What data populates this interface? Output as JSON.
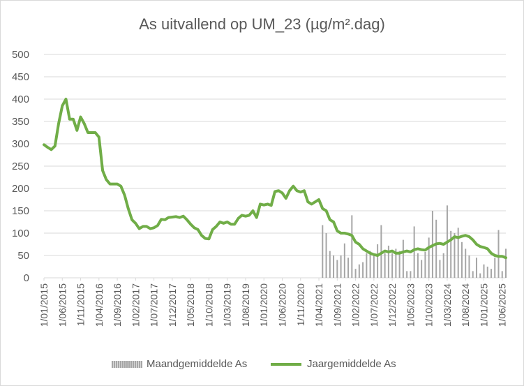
{
  "colors": {
    "line": "#70ad47",
    "bar": "#a6a6a6",
    "grid": "#d9d9d9",
    "text": "#595959"
  },
  "chart_data": {
    "type": "bar+line",
    "title": "As uitvallend op UM_23 (µg/m².dag)",
    "xlabel": "",
    "ylabel": "",
    "ylim": [
      0,
      500
    ],
    "yticks": [
      0,
      50,
      100,
      150,
      200,
      250,
      300,
      350,
      400,
      450,
      500
    ],
    "grid": true,
    "legend": "bottom",
    "xticks": [
      "1/01/2015",
      "1/06/2015",
      "1/11/2015",
      "1/04/2016",
      "1/09/2016",
      "1/02/2017",
      "1/07/2017",
      "1/12/2017",
      "1/05/2018",
      "1/10/2018",
      "1/03/2019",
      "1/08/2019",
      "1/01/2020",
      "1/06/2020",
      "1/11/2020",
      "1/04/2021",
      "1/09/2021",
      "1/02/2022",
      "1/07/2022",
      "1/12/2022",
      "1/05/2023",
      "1/10/2023",
      "1/03/2024",
      "1/08/2024",
      "1/01/2025",
      "1/06/2025"
    ],
    "series": [
      {
        "name": "Maandgemiddelde As",
        "type": "bar",
        "x": [
          "2021-05",
          "2021-06",
          "2021-07",
          "2021-08",
          "2021-09",
          "2021-10",
          "2021-11",
          "2021-12",
          "2022-01",
          "2022-02",
          "2022-03",
          "2022-04",
          "2022-05",
          "2022-06",
          "2022-07",
          "2022-08",
          "2022-09",
          "2022-10",
          "2022-11",
          "2022-12",
          "2023-01",
          "2023-02",
          "2023-03",
          "2023-04",
          "2023-05",
          "2023-06",
          "2023-07",
          "2023-08",
          "2023-09",
          "2023-10",
          "2023-11",
          "2023-12",
          "2024-01",
          "2024-02",
          "2024-03",
          "2024-04",
          "2024-05",
          "2024-06",
          "2024-07",
          "2024-08",
          "2024-09",
          "2024-10",
          "2024-11",
          "2024-12",
          "2025-01",
          "2025-02",
          "2025-03",
          "2025-04",
          "2025-05",
          "2025-06",
          "2025-07"
        ],
        "values": [
          118,
          100,
          60,
          50,
          40,
          50,
          77,
          45,
          140,
          20,
          30,
          35,
          55,
          60,
          50,
          75,
          118,
          55,
          72,
          55,
          65,
          60,
          85,
          15,
          15,
          115,
          55,
          40,
          58,
          90,
          150,
          130,
          40,
          55,
          162,
          105,
          100,
          112,
          80,
          65,
          50,
          15,
          45,
          10,
          30,
          25,
          20,
          45,
          107,
          15,
          65
        ]
      },
      {
        "name": "Jaargemiddelde As",
        "type": "line",
        "x": [
          "2015-01",
          "2015-02",
          "2015-03",
          "2015-04",
          "2015-05",
          "2015-06",
          "2015-07",
          "2015-08",
          "2015-09",
          "2015-10",
          "2015-11",
          "2015-12",
          "2016-01",
          "2016-02",
          "2016-03",
          "2016-04",
          "2016-05",
          "2016-06",
          "2016-07",
          "2016-08",
          "2016-09",
          "2016-10",
          "2016-11",
          "2016-12",
          "2017-01",
          "2017-02",
          "2017-03",
          "2017-04",
          "2017-05",
          "2017-06",
          "2017-07",
          "2017-08",
          "2017-09",
          "2017-10",
          "2017-11",
          "2017-12",
          "2018-01",
          "2018-02",
          "2018-03",
          "2018-04",
          "2018-05",
          "2018-06",
          "2018-07",
          "2018-08",
          "2018-09",
          "2018-10",
          "2018-11",
          "2018-12",
          "2019-01",
          "2019-02",
          "2019-03",
          "2019-04",
          "2019-05",
          "2019-06",
          "2019-07",
          "2019-08",
          "2019-09",
          "2019-10",
          "2019-11",
          "2019-12",
          "2020-01",
          "2020-02",
          "2020-03",
          "2020-04",
          "2020-05",
          "2020-06",
          "2020-07",
          "2020-08",
          "2020-09",
          "2020-10",
          "2020-11",
          "2020-12",
          "2021-01",
          "2021-02",
          "2021-03",
          "2021-04",
          "2021-05",
          "2021-06",
          "2021-07",
          "2021-08",
          "2021-09",
          "2021-10",
          "2021-11",
          "2021-12",
          "2022-01",
          "2022-02",
          "2022-03",
          "2022-04",
          "2022-05",
          "2022-06",
          "2022-07",
          "2022-08",
          "2022-09",
          "2022-10",
          "2022-11",
          "2022-12",
          "2023-01",
          "2023-02",
          "2023-03",
          "2023-04",
          "2023-05",
          "2023-06",
          "2023-07",
          "2023-08",
          "2023-09",
          "2023-10",
          "2023-11",
          "2023-12",
          "2024-01",
          "2024-02",
          "2024-03",
          "2024-04",
          "2024-05",
          "2024-06",
          "2024-07",
          "2024-08",
          "2024-09",
          "2024-10",
          "2024-11",
          "2024-12",
          "2025-01",
          "2025-02",
          "2025-03",
          "2025-04",
          "2025-05",
          "2025-06",
          "2025-07"
        ],
        "values": [
          298,
          292,
          287,
          295,
          345,
          385,
          400,
          355,
          355,
          330,
          360,
          345,
          325,
          325,
          325,
          315,
          240,
          220,
          210,
          210,
          210,
          205,
          185,
          155,
          130,
          122,
          110,
          115,
          115,
          110,
          112,
          117,
          131,
          130,
          135,
          136,
          137,
          135,
          138,
          130,
          120,
          112,
          108,
          95,
          88,
          87,
          108,
          115,
          125,
          122,
          125,
          120,
          120,
          133,
          140,
          138,
          140,
          150,
          135,
          165,
          163,
          165,
          162,
          193,
          195,
          190,
          178,
          195,
          205,
          195,
          192,
          195,
          170,
          165,
          170,
          175,
          155,
          150,
          130,
          125,
          105,
          100,
          100,
          98,
          95,
          80,
          75,
          65,
          60,
          55,
          52,
          50,
          55,
          60,
          58,
          60,
          55,
          55,
          58,
          60,
          58,
          63,
          65,
          63,
          62,
          68,
          72,
          76,
          77,
          75,
          80,
          85,
          92,
          90,
          93,
          95,
          92,
          85,
          75,
          70,
          68,
          65,
          55,
          50,
          48,
          48,
          45
        ]
      }
    ]
  }
}
